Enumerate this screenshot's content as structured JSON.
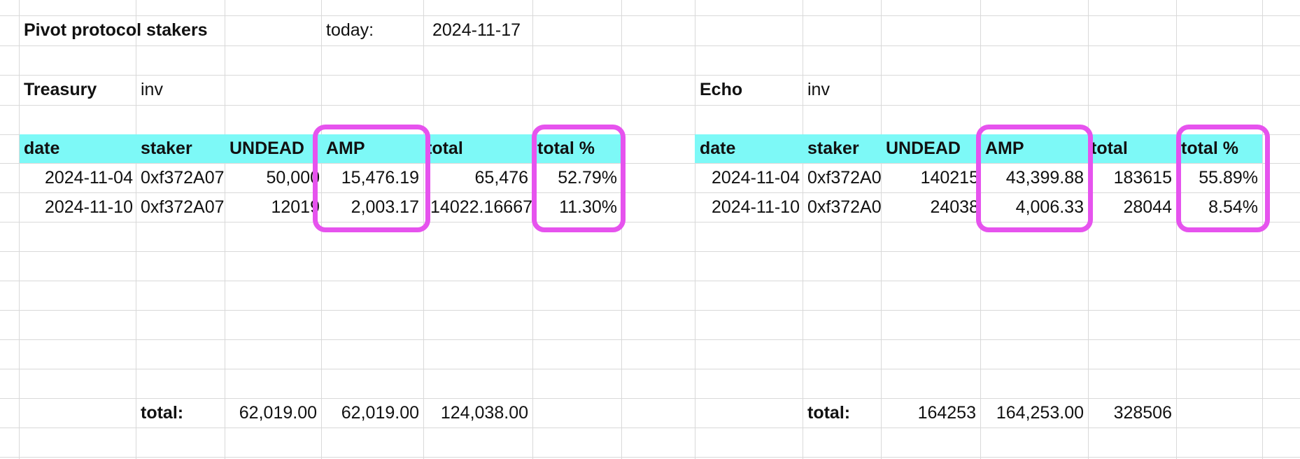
{
  "sheet": {
    "title": "Pivot protocol stakers",
    "today_label": "today:",
    "today_value": "2024-11-17"
  },
  "treasury": {
    "name": "Treasury",
    "inv": "inv",
    "headers": [
      "date",
      "staker",
      "UNDEAD",
      "AMP",
      "total",
      "total %"
    ],
    "rows": [
      [
        "2024-11-04",
        "0xf372A07",
        "50,000",
        "15,476.19",
        "65,476",
        "52.79%"
      ],
      [
        "2024-11-10",
        "0xf372A07",
        "12019",
        "2,003.17",
        "14022.16667",
        "11.30%"
      ]
    ],
    "totals": {
      "label": "total:",
      "undead": "62,019.00",
      "amp": "62,019.00",
      "total": "124,038.00"
    }
  },
  "echo": {
    "name": "Echo",
    "inv": "inv",
    "headers": [
      "date",
      "staker",
      "UNDEAD",
      "AMP",
      "total",
      "total %"
    ],
    "rows": [
      [
        "2024-11-04",
        "0xf372A0",
        "140215",
        "43,399.88",
        "183615",
        "55.89%"
      ],
      [
        "2024-11-10",
        "0xf372A0",
        "24038",
        "4,006.33",
        "28044",
        "8.54%"
      ]
    ],
    "totals": {
      "label": "total:",
      "undead": "164253",
      "amp": "164,253.00",
      "total": "328506"
    }
  },
  "colors": {
    "header_fill": "#7df9f7",
    "highlight_border": "#e653ee",
    "gridline": "#d9d9d9"
  }
}
